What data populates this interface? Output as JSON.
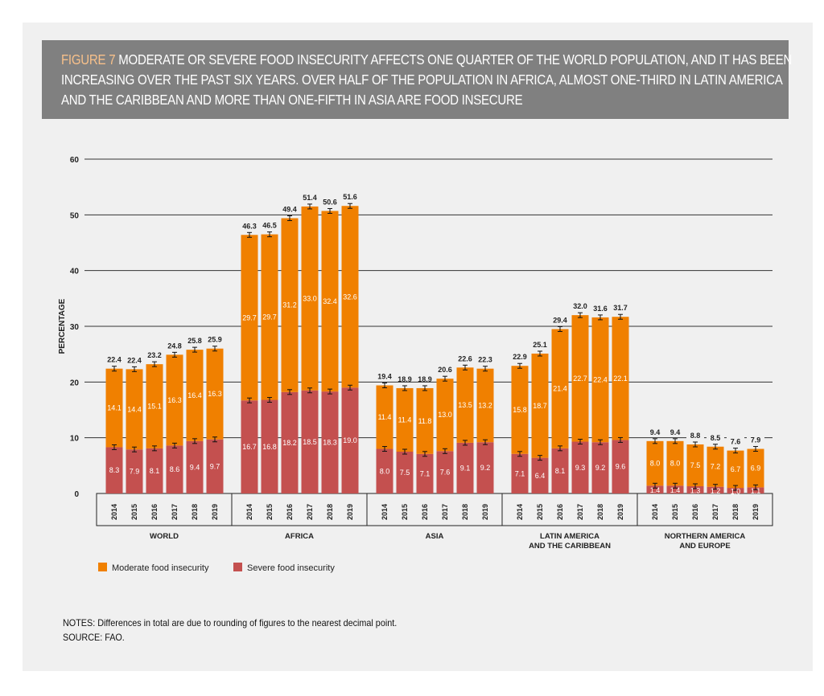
{
  "title": {
    "figure_label": "FIGURE 7",
    "text": "MODERATE OR SEVERE FOOD INSECURITY AFFECTS ONE QUARTER OF THE WORLD POPULATION, AND IT HAS BEEN INCREASING OVER THE PAST SIX YEARS. OVER HALF OF THE POPULATION IN AFRICA, ALMOST ONE-THIRD IN LATIN AMERICA AND THE CARIBBEAN AND MORE THAN ONE-FIFTH IN ASIA ARE FOOD INSECURE"
  },
  "notes": {
    "line1": "NOTES: Differences in total are due to rounding of figures to the nearest decimal point.",
    "line2": "SOURCE: FAO."
  },
  "chart_data": {
    "type": "bar",
    "stacked": true,
    "ylabel": "PERCENTAGE",
    "ylim": [
      0,
      60
    ],
    "yticks": [
      0,
      10,
      20,
      30,
      40,
      50,
      60
    ],
    "grid": true,
    "legend_placement": "bottom-left",
    "years": [
      "2014",
      "2015",
      "2016",
      "2017",
      "2018",
      "2019"
    ],
    "groups": [
      {
        "name": [
          "WORLD"
        ],
        "severe": [
          8.3,
          7.9,
          8.1,
          8.6,
          9.4,
          9.7
        ],
        "moderate": [
          14.1,
          14.4,
          15.1,
          16.3,
          16.4,
          16.3
        ],
        "total": [
          22.4,
          22.4,
          23.2,
          24.8,
          25.8,
          25.9
        ]
      },
      {
        "name": [
          "AFRICA"
        ],
        "severe": [
          16.7,
          16.8,
          18.2,
          18.5,
          18.3,
          19.0
        ],
        "moderate": [
          29.7,
          29.7,
          31.2,
          33.0,
          32.4,
          32.6
        ],
        "total": [
          46.3,
          46.5,
          49.4,
          51.4,
          50.6,
          51.6
        ]
      },
      {
        "name": [
          "ASIA"
        ],
        "severe": [
          8.0,
          7.5,
          7.1,
          7.6,
          9.1,
          9.2
        ],
        "moderate": [
          11.4,
          11.4,
          11.8,
          13.0,
          13.5,
          13.2
        ],
        "total": [
          19.4,
          18.9,
          18.9,
          20.6,
          22.6,
          22.3
        ]
      },
      {
        "name": [
          "LATIN AMERICA",
          "AND THE CARIBBEAN"
        ],
        "severe": [
          7.1,
          6.4,
          8.1,
          9.3,
          9.2,
          9.6
        ],
        "moderate": [
          15.8,
          18.7,
          21.4,
          22.7,
          22.4,
          22.1
        ],
        "total": [
          22.9,
          25.1,
          29.4,
          32.0,
          31.6,
          31.7
        ]
      },
      {
        "name": [
          "NORTHERN AMERICA",
          "AND EUROPE"
        ],
        "severe": [
          1.4,
          1.4,
          1.3,
          1.2,
          1.0,
          1.1
        ],
        "moderate": [
          8.0,
          8.0,
          7.5,
          7.2,
          6.7,
          6.9
        ],
        "total": [
          9.4,
          9.4,
          8.8,
          8.5,
          7.6,
          7.9
        ]
      }
    ],
    "series": [
      {
        "name": "Moderate food insecurity",
        "color": "#f08000"
      },
      {
        "name": "Severe food insecurity",
        "color": "#c4504f"
      }
    ]
  }
}
